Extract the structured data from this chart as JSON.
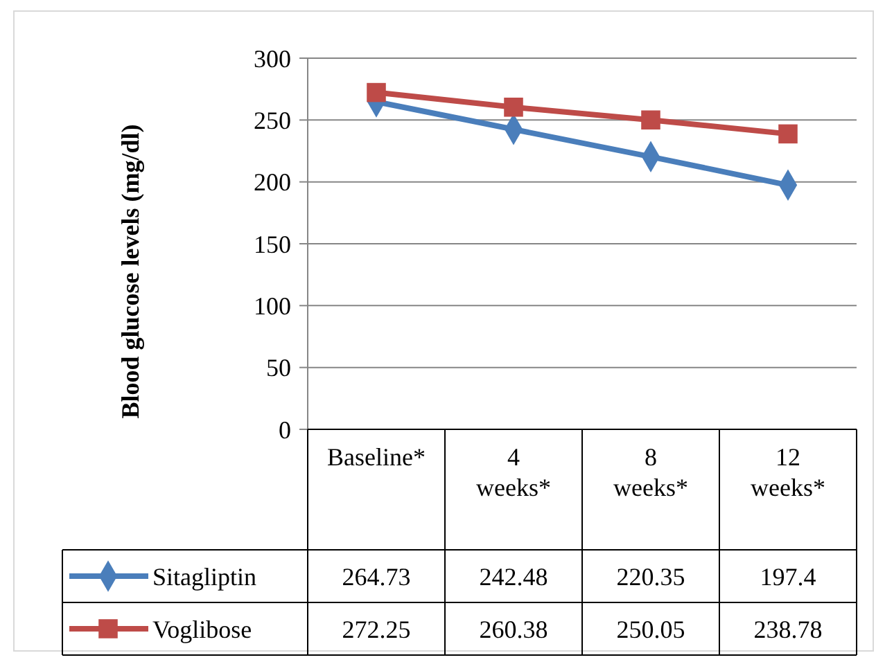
{
  "chart_data": {
    "type": "line",
    "ylabel": "Blood glucose levels (mg/dl)",
    "categories": [
      "Baseline*",
      "4 weeks*",
      "8 weeks*",
      "12 weeks*"
    ],
    "series": [
      {
        "name": "Sitagliptin",
        "color": "#4a7ebb",
        "marker": "diamond",
        "values": [
          264.73,
          242.48,
          220.35,
          197.4
        ]
      },
      {
        "name": "Voglibose",
        "color": "#be4b48",
        "marker": "square",
        "values": [
          272.25,
          260.38,
          250.05,
          238.78
        ]
      }
    ],
    "ylim": [
      0,
      300
    ],
    "yticks": [
      0,
      50,
      100,
      150,
      200,
      250,
      300
    ],
    "grid": "y",
    "data_labels": true,
    "legend": "bottom"
  }
}
